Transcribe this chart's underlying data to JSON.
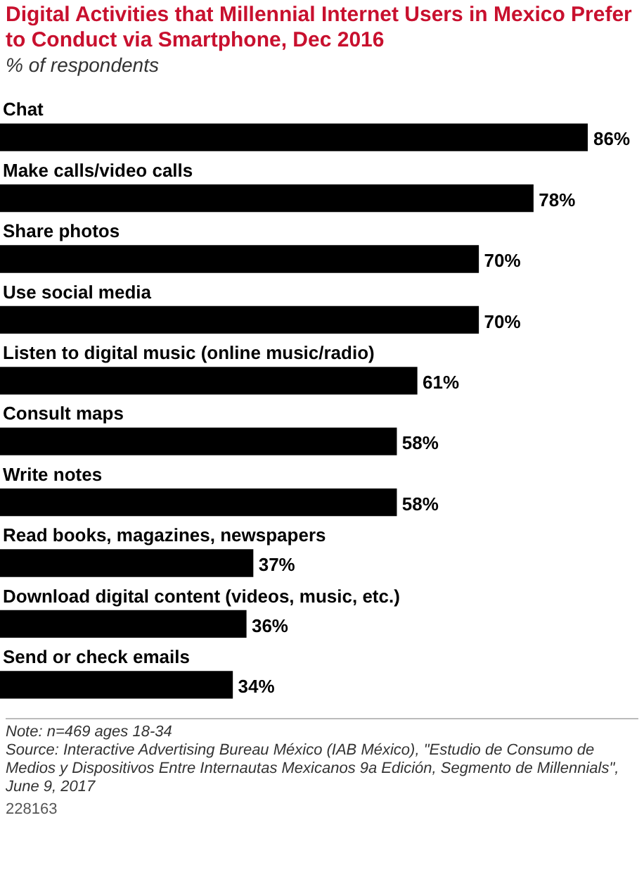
{
  "chart_data": {
    "type": "bar",
    "orientation": "horizontal",
    "title": "Digital Activities that Millennial Internet Users in Mexico Prefer to Conduct via Smartphone, Dec 2016",
    "subtitle": "% of respondents",
    "categories": [
      "Chat",
      "Make calls/video calls",
      "Share photos",
      "Use social media",
      "Listen to digital music (online music/radio)",
      "Consult maps",
      "Write notes",
      "Read books, magazines, newspapers",
      "Download digital content (videos, music, etc.)",
      "Send or check emails"
    ],
    "values": [
      86,
      78,
      70,
      70,
      61,
      58,
      58,
      37,
      36,
      34
    ],
    "value_labels": [
      "86%",
      "78%",
      "70%",
      "70%",
      "61%",
      "58%",
      "58%",
      "37%",
      "36%",
      "34%"
    ],
    "color": "#000000",
    "tick_labels": false,
    "legend": false,
    "annotations": [
      "Note: n=469 ages 18-34",
      "Source: Interactive Advertising Bureau México (IAB México), \"Estudio de Consumo de Medios y Dispositivos Entre Internautas Mexicanos 9a Edición, Segmento de Millennials\", June 9, 2017",
      "228163"
    ]
  }
}
